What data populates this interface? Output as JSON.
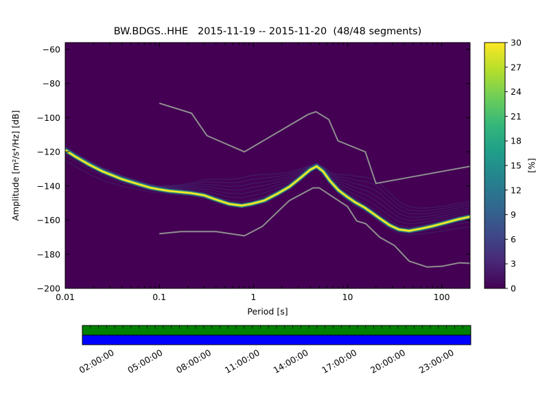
{
  "title": "BW.BDGS..HHE   2015-11-19 -- 2015-11-20  (48/48 segments)",
  "chart_data": {
    "type": "heatmap",
    "title": "BW.BDGS..HHE   2015-11-19 -- 2015-11-20  (48/48 segments)",
    "xlabel": "Period [s]",
    "ylabel": "Amplitude [m²/s⁴/Hz] [dB]",
    "xscale": "log",
    "xlim": [
      0.01,
      200
    ],
    "ylim": [
      -200,
      -56
    ],
    "xticks": [
      0.01,
      0.1,
      1,
      10,
      100
    ],
    "xtick_labels": [
      "0.01",
      "0.1",
      "1",
      "10",
      "100"
    ],
    "yticks": [
      -200,
      -180,
      -160,
      -140,
      -120,
      -100,
      -80,
      -60
    ],
    "background_color": "#440154",
    "colorbar": {
      "label": "[%]",
      "min": 0,
      "max": 30,
      "ticks": [
        0,
        3,
        6,
        9,
        12,
        15,
        18,
        21,
        24,
        27,
        30
      ],
      "colormap": "viridis",
      "gradient": [
        "#440154",
        "#482878",
        "#3e4a89",
        "#31688e",
        "#26828e",
        "#1f9e89",
        "#35b779",
        "#6ece58",
        "#b5de2b",
        "#fde725"
      ]
    },
    "series": [
      {
        "name": "psd-mode",
        "core_color": "#fde725",
        "mid_color": "#35b779",
        "halo_color": "#21918c",
        "points": [
          [
            0.01,
            -119
          ],
          [
            0.013,
            -123
          ],
          [
            0.018,
            -127.5
          ],
          [
            0.025,
            -131.5
          ],
          [
            0.04,
            -136
          ],
          [
            0.06,
            -139
          ],
          [
            0.08,
            -141
          ],
          [
            0.1,
            -142
          ],
          [
            0.13,
            -143
          ],
          [
            0.17,
            -143.6
          ],
          [
            0.22,
            -144.2
          ],
          [
            0.3,
            -145.5
          ],
          [
            0.4,
            -148
          ],
          [
            0.55,
            -150.5
          ],
          [
            0.75,
            -151.5
          ],
          [
            0.95,
            -150.5
          ],
          [
            1.3,
            -148.5
          ],
          [
            1.8,
            -144.5
          ],
          [
            2.4,
            -140.5
          ],
          [
            3.2,
            -135
          ],
          [
            4.0,
            -130.5
          ],
          [
            4.7,
            -128.5
          ],
          [
            5.5,
            -131.5
          ],
          [
            6.5,
            -137
          ],
          [
            8,
            -142.5
          ],
          [
            10,
            -146.5
          ],
          [
            12,
            -149.5
          ],
          [
            15,
            -152.5
          ],
          [
            18,
            -155.5
          ],
          [
            22,
            -159
          ],
          [
            28,
            -163
          ],
          [
            35,
            -165.5
          ],
          [
            45,
            -166.3
          ],
          [
            60,
            -165
          ],
          [
            80,
            -163.5
          ],
          [
            110,
            -161.5
          ],
          [
            150,
            -159.5
          ],
          [
            200,
            -158
          ]
        ]
      },
      {
        "name": "noise-model-high-nhnm",
        "color": "#8f8f8f",
        "points": [
          [
            0.1,
            -91.5
          ],
          [
            0.22,
            -97.4
          ],
          [
            0.32,
            -110.5
          ],
          [
            0.8,
            -120
          ],
          [
            3.8,
            -98.1
          ],
          [
            4.6,
            -96.5
          ],
          [
            6.3,
            -101
          ],
          [
            7.9,
            -113.5
          ],
          [
            15.4,
            -120
          ],
          [
            20,
            -138.5
          ],
          [
            50,
            -134.5
          ],
          [
            100,
            -131.5
          ],
          [
            200,
            -128.5
          ]
        ]
      },
      {
        "name": "noise-model-low-nlnm",
        "color": "#8f8f8f",
        "points": [
          [
            0.1,
            -168
          ],
          [
            0.17,
            -166.7
          ],
          [
            0.4,
            -166.7
          ],
          [
            0.8,
            -169.2
          ],
          [
            1.24,
            -163.7
          ],
          [
            2.4,
            -148.6
          ],
          [
            4.3,
            -141.1
          ],
          [
            5,
            -141.1
          ],
          [
            6,
            -144
          ],
          [
            10,
            -152.1
          ],
          [
            12.5,
            -160.5
          ],
          [
            15.6,
            -162.1
          ],
          [
            21.9,
            -170
          ],
          [
            31.6,
            -175
          ],
          [
            45,
            -184
          ],
          [
            70,
            -187.5
          ],
          [
            101,
            -187
          ],
          [
            154,
            -185
          ],
          [
            200,
            -185.3
          ]
        ]
      }
    ],
    "spread_above_db": [
      [
        0.1,
        2
      ],
      [
        0.2,
        5
      ],
      [
        0.4,
        12
      ],
      [
        0.7,
        16
      ],
      [
        1.1,
        17
      ],
      [
        1.6,
        13
      ],
      [
        2.5,
        8
      ],
      [
        4,
        2.5
      ],
      [
        5,
        1.5
      ],
      [
        6.5,
        5
      ],
      [
        8,
        9
      ],
      [
        10,
        13
      ],
      [
        14,
        17
      ],
      [
        20,
        21
      ],
      [
        28,
        19
      ],
      [
        40,
        15
      ],
      [
        60,
        12
      ],
      [
        100,
        10
      ],
      [
        200,
        9
      ]
    ],
    "spread_below_db": [
      [
        0.01,
        6
      ],
      [
        0.03,
        5
      ],
      [
        0.06,
        3
      ],
      [
        0.1,
        2
      ],
      [
        0.5,
        1
      ],
      [
        5,
        1
      ],
      [
        10,
        2
      ],
      [
        30,
        2
      ],
      [
        60,
        3
      ],
      [
        200,
        6
      ]
    ],
    "spread_line_color": "#39568c",
    "fan_lines_above": 7,
    "fan_lines_below": 2
  },
  "timeline": {
    "segments": 48,
    "span_hours": 24,
    "top_color": "#008000",
    "bottom_color": "#0000ff",
    "ticks": [
      {
        "label": "02:00:00",
        "hour": 2
      },
      {
        "label": "05:00:00",
        "hour": 5
      },
      {
        "label": "08:00:00",
        "hour": 8
      },
      {
        "label": "11:00:00",
        "hour": 11
      },
      {
        "label": "14:00:00",
        "hour": 14
      },
      {
        "label": "17:00:00",
        "hour": 17
      },
      {
        "label": "20:00:00",
        "hour": 20
      },
      {
        "label": "23:00:00",
        "hour": 23
      }
    ]
  }
}
